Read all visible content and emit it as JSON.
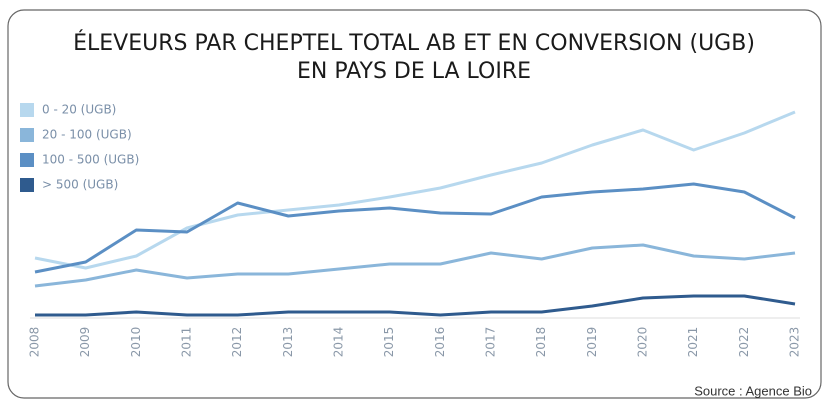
{
  "chart_data": {
    "type": "line",
    "title": [
      "ÉLEVEURS PAR CHEPTEL TOTAL AB ET EN CONVERSION (UGB)",
      "EN PAYS DE LA LOIRE"
    ],
    "categories": [
      "2008",
      "2009",
      "2010",
      "2011",
      "2012",
      "2013",
      "2014",
      "2015",
      "2016",
      "2017",
      "2018",
      "2019",
      "2020",
      "2021",
      "2022",
      "2023"
    ],
    "series": [
      {
        "name": "0 - 20 (UGB)",
        "color": "#b7d8ee",
        "values": [
          60,
          50,
          62,
          90,
          103,
          108,
          113,
          121,
          130,
          143,
          155,
          173,
          188,
          168,
          185,
          206
        ]
      },
      {
        "name": "20 - 100 (UGB)",
        "color": "#8ab6da",
        "values": [
          32,
          38,
          48,
          40,
          44,
          44,
          49,
          54,
          54,
          65,
          59,
          70,
          73,
          62,
          59,
          65
        ]
      },
      {
        "name": "100 - 500 (UGB)",
        "color": "#5b8fc4",
        "values": [
          46,
          56,
          88,
          86,
          115,
          102,
          107,
          110,
          105,
          104,
          121,
          126,
          129,
          134,
          126,
          100
        ]
      },
      {
        "name": "> 500 (UGB)",
        "color": "#2f5b8e",
        "values": [
          3,
          3,
          6,
          3,
          3,
          6,
          6,
          6,
          3,
          6,
          6,
          12,
          20,
          22,
          22,
          14
        ]
      }
    ],
    "ylim": [
      0,
      220
    ],
    "source": "Source : Agence Bio"
  }
}
